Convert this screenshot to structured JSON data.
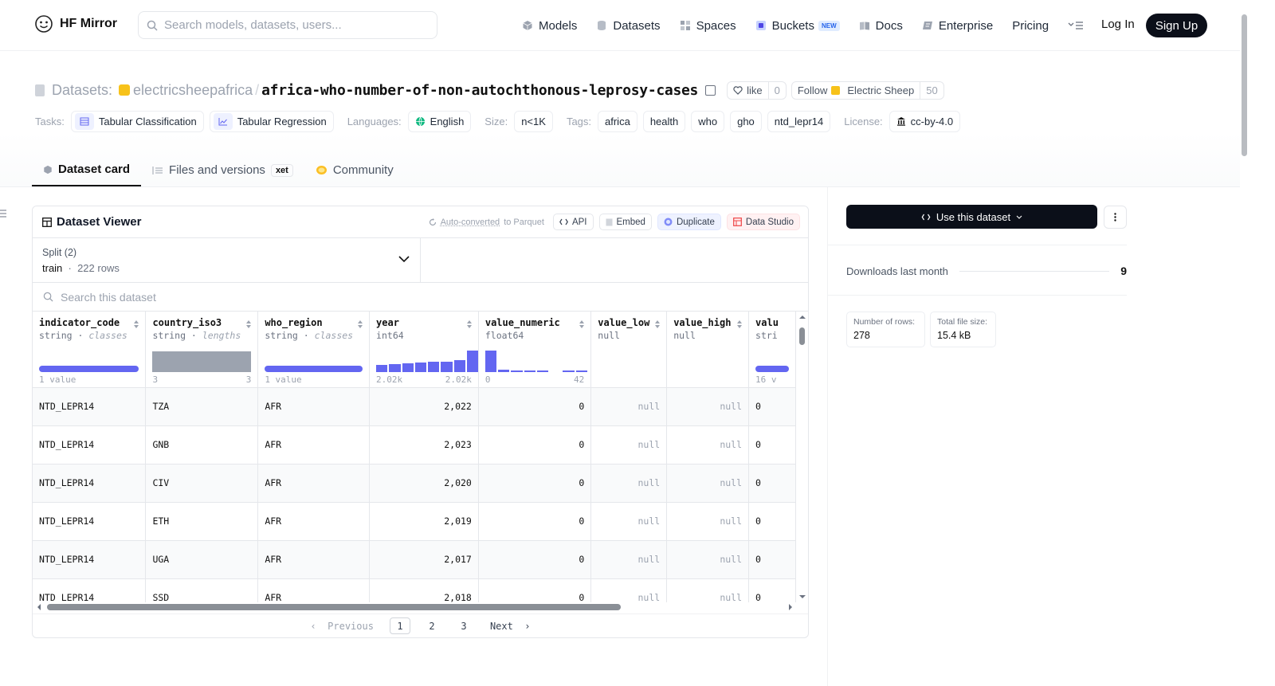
{
  "header": {
    "brand": "HF Mirror",
    "search_placeholder": "Search models, datasets, users...",
    "nav": [
      {
        "label": "Models",
        "icon": "cube-icon"
      },
      {
        "label": "Datasets",
        "icon": "database-icon"
      },
      {
        "label": "Spaces",
        "icon": "grid-icon"
      },
      {
        "label": "Buckets",
        "icon": "bucket-icon",
        "badge": "NEW"
      },
      {
        "label": "Docs",
        "icon": "book-icon"
      },
      {
        "label": "Enterprise",
        "icon": "enterprise-icon"
      },
      {
        "label": "Pricing"
      }
    ],
    "login": "Log In",
    "signup": "Sign Up"
  },
  "repo": {
    "type_label": "Datasets:",
    "org": "electricsheepafrica",
    "separator": "/",
    "name": "africa-who-number-of-non-autochthonous-leprosy-cases",
    "like_label": "like",
    "like_count": "0",
    "follow_label": "Follow",
    "follow_org": "Electric Sheep",
    "follow_count": "50"
  },
  "meta": {
    "tasks_label": "Tasks:",
    "tasks": [
      "Tabular Classification",
      "Tabular Regression"
    ],
    "languages_label": "Languages:",
    "language": "English",
    "size_label": "Size:",
    "size": "n<1K",
    "tags_label": "Tags:",
    "tags": [
      "africa",
      "health",
      "who",
      "gho",
      "ntd_lepr14"
    ],
    "license_label": "License:",
    "license": "cc-by-4.0"
  },
  "tabs": [
    {
      "label": "Dataset card",
      "active": true
    },
    {
      "label": "Files and versions",
      "badge": "xet"
    },
    {
      "label": "Community"
    }
  ],
  "viewer": {
    "title": "Dataset Viewer",
    "autoconv_link": "Auto-converted",
    "autoconv_rest": "to Parquet",
    "buttons": [
      "API",
      "Embed",
      "Duplicate",
      "Data Studio"
    ],
    "split_label": "Split (2)",
    "split_value": "train",
    "split_rows": "222 rows",
    "search_placeholder": "Search this dataset",
    "columns": [
      {
        "name": "indicator_code",
        "type": "string",
        "sub": "classes",
        "range": [
          "1 value",
          ""
        ]
      },
      {
        "name": "country_iso3",
        "type": "string",
        "sub": "lengths",
        "range": [
          "3",
          "3"
        ]
      },
      {
        "name": "who_region",
        "type": "string",
        "sub": "classes",
        "range": [
          "1 value",
          ""
        ]
      },
      {
        "name": "year",
        "type": "int64",
        "sub": "",
        "range": [
          "2.02k",
          "2.02k"
        ]
      },
      {
        "name": "value_numeric",
        "type": "float64",
        "sub": "",
        "range": [
          "0",
          "42"
        ]
      },
      {
        "name": "value_low",
        "type": "null",
        "sub": "",
        "range": [
          "",
          ""
        ]
      },
      {
        "name": "value_high",
        "type": "null",
        "sub": "",
        "range": [
          "",
          ""
        ]
      },
      {
        "name": "valu",
        "type": "stri",
        "sub": "",
        "range": [
          "16 v",
          ""
        ]
      }
    ],
    "year_hist": [
      0.3,
      0.35,
      0.4,
      0.42,
      0.45,
      0.48,
      0.55,
      1.0
    ],
    "value_hist": [
      1.0,
      0.08,
      0.05,
      0.05,
      0.05,
      0,
      0.05,
      0.05
    ],
    "rows": [
      [
        "NTD_LEPR14",
        "TZA",
        "AFR",
        "2,022",
        "0",
        "null",
        "null",
        "0"
      ],
      [
        "NTD_LEPR14",
        "GNB",
        "AFR",
        "2,023",
        "0",
        "null",
        "null",
        "0"
      ],
      [
        "NTD_LEPR14",
        "CIV",
        "AFR",
        "2,020",
        "0",
        "null",
        "null",
        "0"
      ],
      [
        "NTD_LEPR14",
        "ETH",
        "AFR",
        "2,019",
        "0",
        "null",
        "null",
        "0"
      ],
      [
        "NTD_LEPR14",
        "UGA",
        "AFR",
        "2,017",
        "0",
        "null",
        "null",
        "0"
      ],
      [
        "NTD_LEPR14",
        "SSD",
        "AFR",
        "2,018",
        "0",
        "null",
        "null",
        "0"
      ]
    ],
    "pager": {
      "prev": "Previous",
      "pages": [
        "1",
        "2",
        "3"
      ],
      "next": "Next",
      "current": "1"
    }
  },
  "sidebar": {
    "use_button": "Use this dataset",
    "downloads_label": "Downloads last month",
    "downloads": "9",
    "rows_label": "Number of rows:",
    "rows_value": "278",
    "filesize_label": "Total file size:",
    "filesize_value": "15.4 kB"
  },
  "colors": {
    "accent": "#6366f1",
    "dark": "#0b0f19",
    "brand": "#f7c21a"
  }
}
